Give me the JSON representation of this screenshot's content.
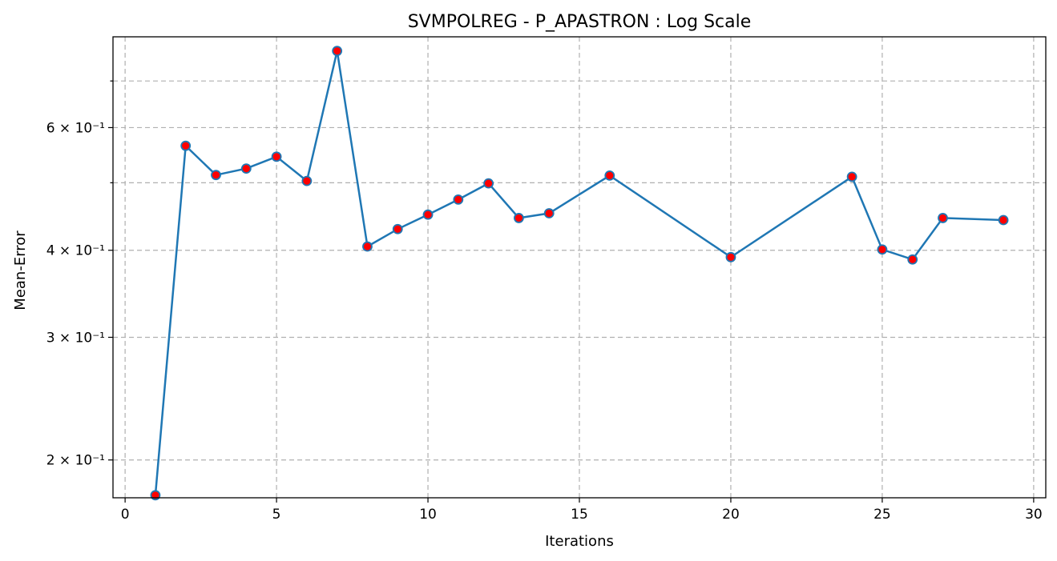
{
  "chart_data": {
    "type": "line",
    "title": "SVMPOLREG - P_APASTRON : Log Scale",
    "xlabel": "Iterations",
    "ylabel": "Mean-Error",
    "yscale": "log",
    "xlim": [
      -0.4,
      30.4
    ],
    "ylim": [
      0.1765,
      0.81
    ],
    "grid": true,
    "x_ticks": [
      0,
      5,
      10,
      15,
      20,
      25,
      30
    ],
    "y_major_ticks": [
      {
        "value": 0.2,
        "label": "2 × 10⁻¹"
      },
      {
        "value": 0.3,
        "label": "3 × 10⁻¹"
      },
      {
        "value": 0.4,
        "label": "4 × 10⁻¹"
      },
      {
        "value": 0.6,
        "label": "6 × 10⁻¹"
      }
    ],
    "y_minor_ticks": [
      0.5,
      0.7
    ],
    "line_color": "#1f77b4",
    "marker_color": "#ff0000",
    "series": [
      {
        "x": [
          1,
          2,
          3,
          4,
          5,
          6,
          7,
          8,
          9,
          10,
          11,
          12,
          13,
          14,
          16,
          20,
          24,
          25,
          26,
          27,
          29
        ],
        "y": [
          0.178,
          0.565,
          0.513,
          0.524,
          0.545,
          0.503,
          0.773,
          0.405,
          0.429,
          0.45,
          0.473,
          0.499,
          0.445,
          0.452,
          0.512,
          0.391,
          0.51,
          0.401,
          0.388,
          0.445,
          0.442
        ]
      }
    ]
  }
}
